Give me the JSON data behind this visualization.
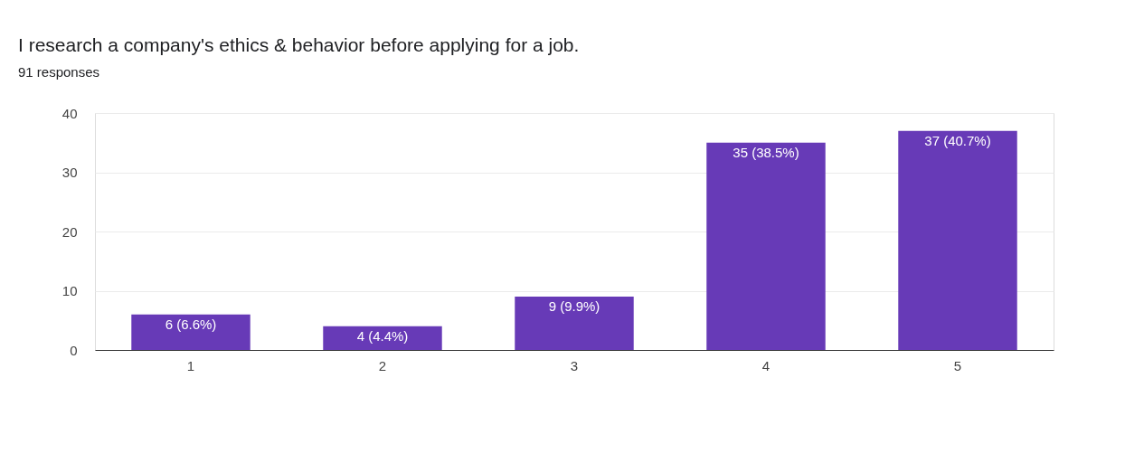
{
  "chart_data": {
    "type": "bar",
    "title": "I research a company's ethics & behavior before applying for a job.",
    "subtitle": "91 responses",
    "categories": [
      "1",
      "2",
      "3",
      "4",
      "5"
    ],
    "values": [
      6,
      4,
      9,
      35,
      37
    ],
    "value_labels": [
      "6 (6.6%)",
      "4 (4.4%)",
      "9 (9.9%)",
      "35 (38.5%)",
      "37 (40.7%)"
    ],
    "color": "#673ab7",
    "ylim": [
      0,
      40
    ],
    "yticks": [
      0,
      10,
      20,
      30,
      40
    ],
    "grid": "y"
  }
}
